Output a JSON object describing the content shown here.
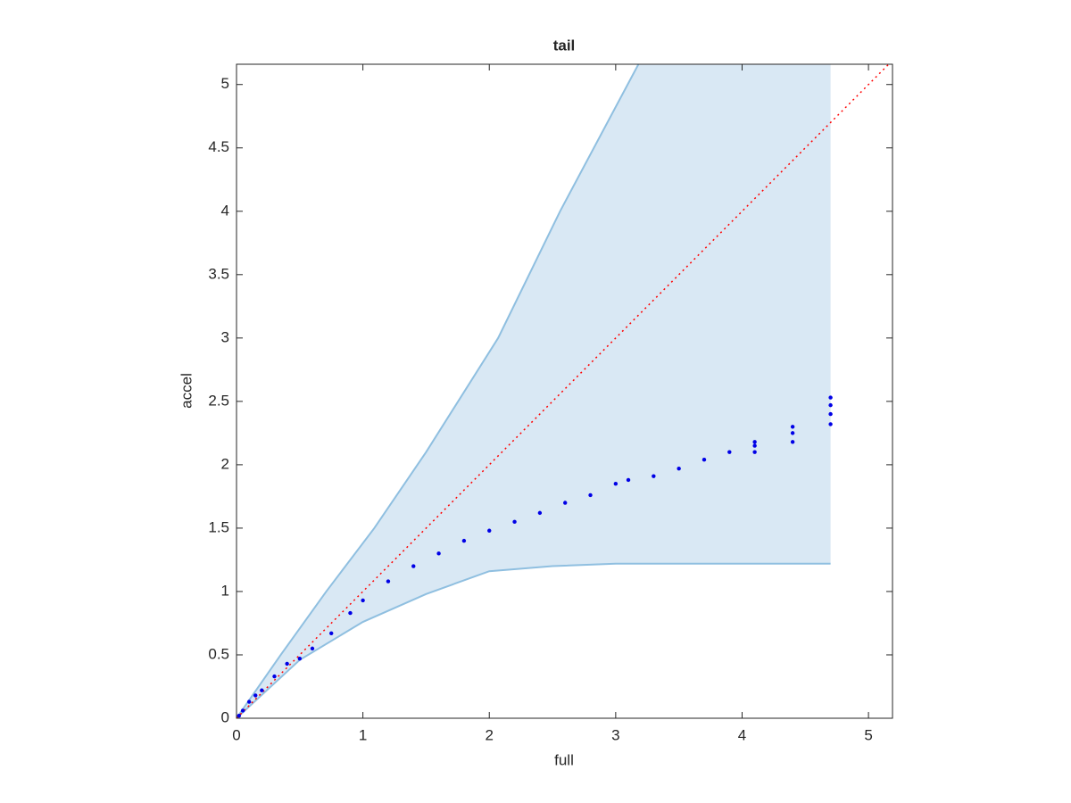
{
  "chart_data": {
    "type": "scatter",
    "title": "tail",
    "x_label": "full",
    "y_label": "accel",
    "xlim": [
      0,
      5.19
    ],
    "ylim": [
      0,
      5.16
    ],
    "xticks": [
      0,
      1,
      2,
      3,
      4,
      5
    ],
    "yticks": [
      0,
      0.5,
      1,
      1.5,
      2,
      2.5,
      3,
      3.5,
      4,
      4.5,
      5
    ],
    "band": {
      "color": "#d9e8f4",
      "line_color": "#8fbfe0",
      "lower": {
        "x": [
          0,
          0.5,
          1,
          1.5,
          2,
          2.5,
          3,
          4,
          4.7
        ],
        "values": [
          0,
          0.46,
          0.76,
          0.98,
          1.16,
          1.2,
          1.22,
          1.22,
          1.22
        ]
      },
      "upper": {
        "x": [
          0,
          0.35,
          0.71,
          1.09,
          1.5,
          2.07,
          2.56,
          3.18
        ],
        "values": [
          0,
          0.5,
          1.0,
          1.5,
          2.1,
          3.0,
          4.0,
          5.16
        ]
      },
      "end_x": 4.7
    },
    "reference_line": {
      "color": "#ff0000",
      "x": [
        0,
        5.19
      ],
      "values": [
        0,
        5.19
      ]
    },
    "series": [
      {
        "color": "#0000e6",
        "x": [
          0.02,
          0.05,
          0.1,
          0.15,
          0.2,
          0.3,
          0.4,
          0.5,
          0.6,
          0.75,
          0.9,
          1.0,
          1.2,
          1.4,
          1.6,
          1.8,
          2.0,
          2.2,
          2.4,
          2.6,
          2.8,
          3.0,
          3.1,
          3.3,
          3.5,
          3.7,
          3.9,
          4.1,
          4.1,
          4.1,
          4.4,
          4.4,
          4.4,
          4.7,
          4.7,
          4.7,
          4.7
        ],
        "values": [
          0.02,
          0.06,
          0.13,
          0.18,
          0.22,
          0.33,
          0.43,
          0.47,
          0.55,
          0.67,
          0.83,
          0.93,
          1.08,
          1.2,
          1.3,
          1.4,
          1.48,
          1.55,
          1.62,
          1.7,
          1.76,
          1.85,
          1.88,
          1.91,
          1.97,
          2.04,
          2.1,
          2.1,
          2.15,
          2.18,
          2.18,
          2.25,
          2.3,
          2.32,
          2.4,
          2.47,
          2.53
        ]
      }
    ]
  }
}
